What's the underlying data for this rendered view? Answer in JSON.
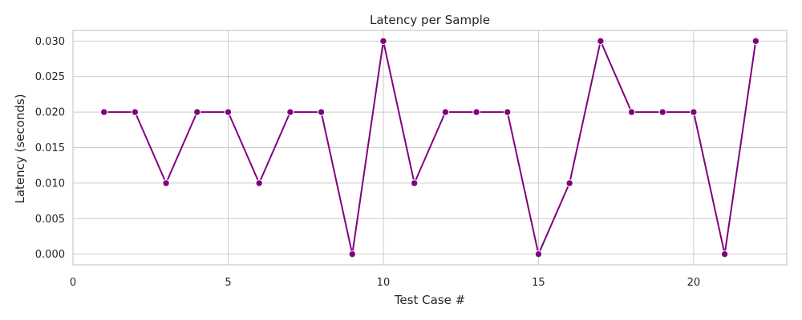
{
  "chart_data": {
    "type": "line",
    "title": "Latency per Sample",
    "xlabel": "Test Case #",
    "ylabel": "Latency (seconds)",
    "xlim": [
      0,
      23
    ],
    "ylim": [
      -0.0015,
      0.0315
    ],
    "xticks": [
      0,
      5,
      10,
      15,
      20
    ],
    "yticks": [
      0.0,
      0.005,
      0.01,
      0.015,
      0.02,
      0.025,
      0.03
    ],
    "grid": true,
    "series": [
      {
        "color": "#800080",
        "x": [
          1,
          2,
          3,
          4,
          5,
          6,
          7,
          8,
          9,
          10,
          11,
          12,
          13,
          14,
          15,
          16,
          17,
          18,
          19,
          20,
          21,
          22
        ],
        "y": [
          0.02,
          0.02,
          0.01,
          0.02,
          0.02,
          0.01,
          0.02,
          0.02,
          0.0,
          0.03,
          0.01,
          0.02,
          0.02,
          0.02,
          0.0,
          0.01,
          0.03,
          0.02,
          0.02,
          0.02,
          0.0,
          0.03
        ]
      }
    ]
  }
}
